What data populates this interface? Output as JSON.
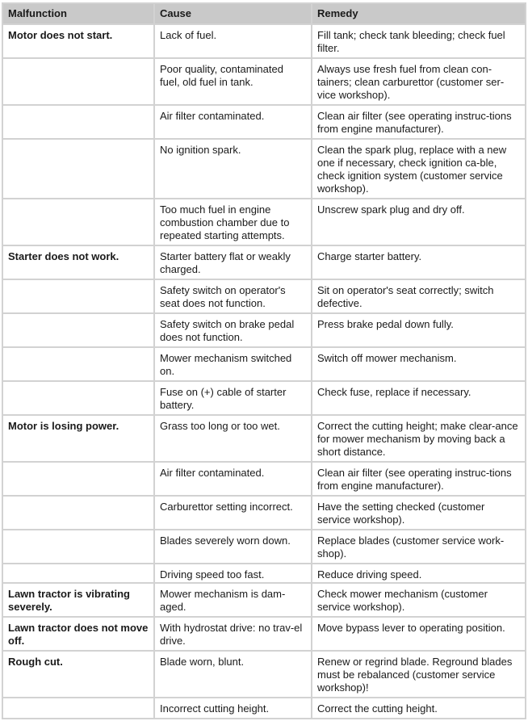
{
  "headers": [
    "Malfunction",
    "Cause",
    "Remedy"
  ],
  "rows": [
    {
      "malfunction": "Motor does not start.",
      "cause": "Lack of fuel.",
      "remedy": "Fill tank; check tank bleeding; check fuel filter.",
      "h": 42
    },
    {
      "malfunction": "",
      "cause": "Poor quality, contaminated fuel, old fuel in tank.",
      "remedy": "Always use fresh fuel from clean con-tainers; clean carburettor (customer ser-vice workshop).",
      "h": 58
    },
    {
      "malfunction": "",
      "cause": "Air filter contaminated.",
      "remedy": "Clean air filter (see operating instruc-tions from engine manufacturer).",
      "h": 42
    },
    {
      "malfunction": "",
      "cause": "No ignition spark.",
      "remedy": "Clean the spark plug, replace with a new one if necessary, check ignition ca-ble, check ignition system (customer service workshop).",
      "h": 74
    },
    {
      "malfunction": "",
      "cause": "Too much fuel in engine combustion chamber due to repeated starting attempts.",
      "remedy": "Unscrew spark plug and dry off.",
      "h": 58
    },
    {
      "malfunction": "Starter does not work.",
      "cause": "Starter battery flat or weakly charged.",
      "remedy": "Charge starter battery.",
      "h": 42
    },
    {
      "malfunction": "",
      "cause": "Safety switch on operator's seat does not function.",
      "remedy": "Sit on operator's seat correctly; switch defective.",
      "h": 42
    },
    {
      "malfunction": "",
      "cause": "Safety switch on brake pedal does not function.",
      "remedy": "Press brake pedal down fully.",
      "h": 42
    },
    {
      "malfunction": "",
      "cause": "Mower mechanism switched on.",
      "remedy": "Switch off mower mechanism.",
      "h": 42
    },
    {
      "malfunction": "",
      "cause": "Fuse on (+) cable of starter battery.",
      "remedy": "Check fuse, replace if necessary.",
      "h": 42
    },
    {
      "malfunction": "Motor is losing power.",
      "cause": "Grass too long or too wet.",
      "remedy": "Correct the cutting height; make clear-ance for mower mechanism by moving back a short distance.",
      "h": 58
    },
    {
      "malfunction": "",
      "cause": "Air filter contaminated.",
      "remedy": "Clean air filter (see operating instruc-tions from engine manufacturer).",
      "h": 42
    },
    {
      "malfunction": "",
      "cause": "Carburettor setting incorrect.",
      "remedy": "Have the setting checked (customer service workshop).",
      "h": 42
    },
    {
      "malfunction": "",
      "cause": "Blades severely worn down.",
      "remedy": "Replace blades (customer service work-shop).",
      "h": 42
    },
    {
      "malfunction": "",
      "cause": "Driving speed too fast.",
      "remedy": "Reduce driving speed.",
      "h": 24
    },
    {
      "malfunction": "Lawn tractor is vibrating severely.",
      "cause": "Mower mechanism is dam-aged.",
      "remedy": "Check mower mechanism (customer service workshop).",
      "h": 42
    },
    {
      "malfunction": "Lawn tractor does not move off.",
      "cause": "With hydrostat drive: no trav-el drive.",
      "remedy": "Move bypass lever to operating position.",
      "h": 42
    },
    {
      "malfunction": "Rough cut.",
      "cause": "Blade worn, blunt.",
      "remedy": "Renew or regrind blade. Reground blades must be rebalanced (customer service workshop)!",
      "h": 58
    },
    {
      "malfunction": "",
      "cause": "Incorrect cutting height.",
      "remedy": "Correct the cutting height.",
      "h": 26
    }
  ]
}
